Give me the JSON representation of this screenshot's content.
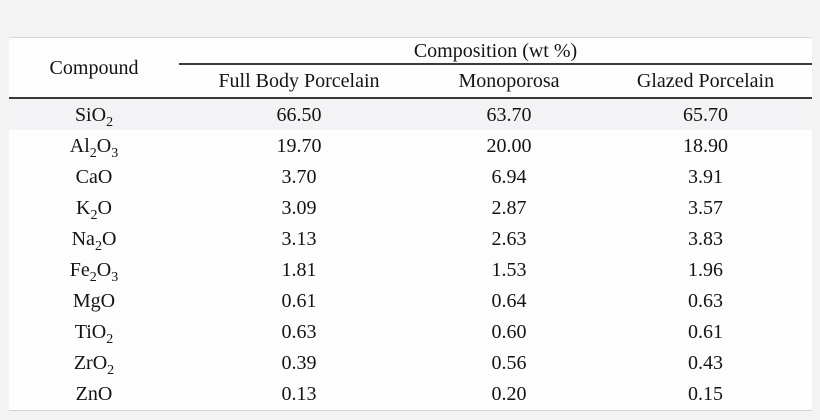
{
  "table": {
    "header": {
      "compound": "Compound",
      "composition": "Composition (wt %)",
      "columns": [
        "Full Body Porcelain",
        "Monoporosa",
        "Glazed Porcelain"
      ]
    },
    "rows": [
      {
        "compound": "SiO_2",
        "values": [
          "66.50",
          "63.70",
          "65.70"
        ]
      },
      {
        "compound": "Al_2O_3",
        "values": [
          "19.70",
          "20.00",
          "18.90"
        ]
      },
      {
        "compound": "CaO",
        "values": [
          "3.70",
          "6.94",
          "3.91"
        ]
      },
      {
        "compound": "K_2O",
        "values": [
          "3.09",
          "2.87",
          "3.57"
        ]
      },
      {
        "compound": "Na_2O",
        "values": [
          "3.13",
          "2.63",
          "3.83"
        ]
      },
      {
        "compound": "Fe_2O_3",
        "values": [
          "1.81",
          "1.53",
          "1.96"
        ]
      },
      {
        "compound": "MgO",
        "values": [
          "0.61",
          "0.64",
          "0.63"
        ]
      },
      {
        "compound": "TiO_2",
        "values": [
          "0.63",
          "0.60",
          "0.61"
        ]
      },
      {
        "compound": "ZrO_2",
        "values": [
          "0.39",
          "0.56",
          "0.43"
        ]
      },
      {
        "compound": "ZnO",
        "values": [
          "0.13",
          "0.20",
          "0.15"
        ]
      }
    ]
  },
  "chart_data": {
    "type": "table",
    "title": "Composition (wt %)",
    "row_header": "Compound",
    "categories": [
      "SiO2",
      "Al2O3",
      "CaO",
      "K2O",
      "Na2O",
      "Fe2O3",
      "MgO",
      "TiO2",
      "ZrO2",
      "ZnO"
    ],
    "series": [
      {
        "name": "Full Body Porcelain",
        "values": [
          66.5,
          19.7,
          3.7,
          3.09,
          3.13,
          1.81,
          0.61,
          0.63,
          0.39,
          0.13
        ]
      },
      {
        "name": "Monoporosa",
        "values": [
          63.7,
          20.0,
          6.94,
          2.87,
          2.63,
          1.53,
          0.64,
          0.6,
          0.56,
          0.2
        ]
      },
      {
        "name": "Glazed Porcelain",
        "values": [
          65.7,
          18.9,
          3.91,
          3.57,
          3.83,
          1.96,
          0.63,
          0.61,
          0.43,
          0.15
        ]
      }
    ]
  }
}
